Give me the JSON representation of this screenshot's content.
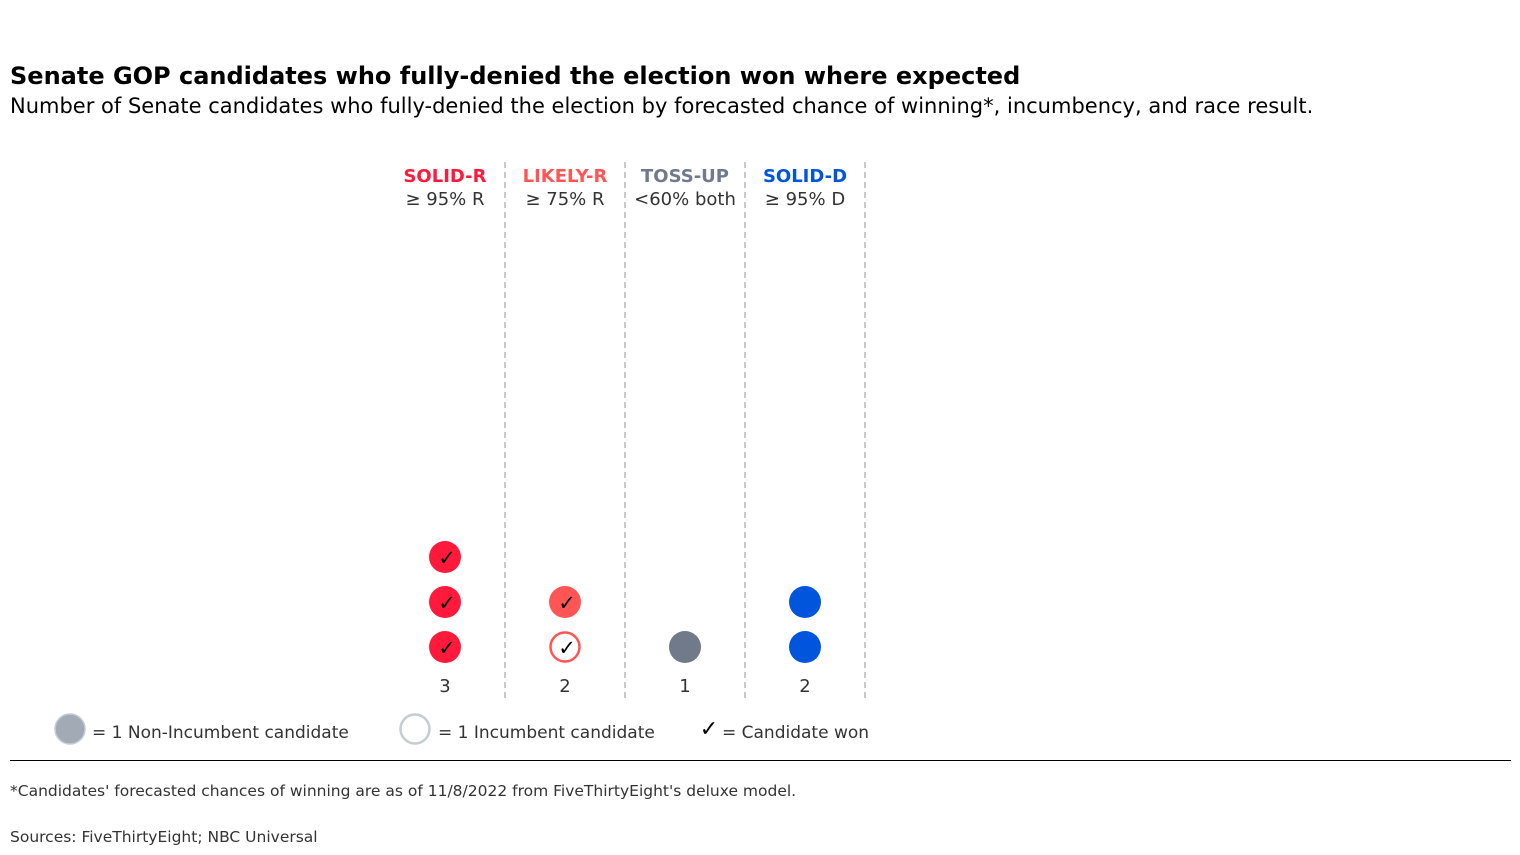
{
  "header": {
    "title": "Senate GOP candidates who fully-denied the election won where expected",
    "subtitle": "Number of Senate candidates who fully-denied the election by forecasted chance of winning*, incumbency, and race result."
  },
  "chart_data": {
    "type": "dot-column",
    "categories": [
      {
        "label": "SOLID-R",
        "sublabel": "≥ 95% R",
        "color": "#ff1a3c",
        "count_label": "3",
        "dots": [
          {
            "incumbent": false,
            "won": true
          },
          {
            "incumbent": false,
            "won": true
          },
          {
            "incumbent": false,
            "won": true
          }
        ]
      },
      {
        "label": "LIKELY-R",
        "sublabel": "≥ 75% R",
        "color": "#ff5555",
        "count_label": "2",
        "dots": [
          {
            "incumbent": true,
            "won": true
          },
          {
            "incumbent": false,
            "won": true
          }
        ]
      },
      {
        "label": "TOSS-UP",
        "sublabel": "<60% both",
        "color": "#707a8a",
        "count_label": "1",
        "dots": [
          {
            "incumbent": false,
            "won": false
          }
        ]
      },
      {
        "label": "SOLID-D",
        "sublabel": "≥ 95% D",
        "color": "#0055dd",
        "count_label": "2",
        "dots": [
          {
            "incumbent": false,
            "won": false
          },
          {
            "incumbent": false,
            "won": false
          }
        ]
      }
    ],
    "legend": [
      {
        "symbol": "non-incumbent",
        "text": "= 1 Non-Incumbent candidate",
        "color": "#a1aab5"
      },
      {
        "symbol": "incumbent",
        "text": "= 1 Incumbent candidate",
        "color": "#c5ccd3"
      },
      {
        "symbol": "check",
        "glyph": "✓",
        "text": "= Candidate won"
      }
    ]
  },
  "footer": {
    "footnote": "*Candidates' forecasted chances of winning are as of 11/8/2022 from FiveThirtyEight's deluxe model.",
    "sources": "Sources: FiveThirtyEight; NBC Universal"
  }
}
